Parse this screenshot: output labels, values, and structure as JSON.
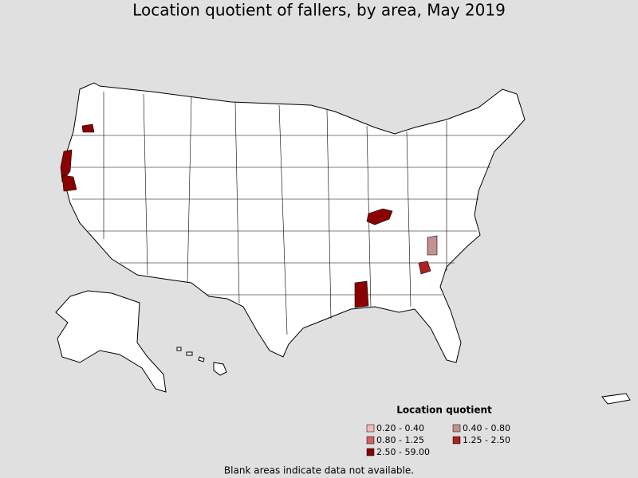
{
  "title": "Location quotient of fallers, by area, May 2019",
  "legend": {
    "title": "Location quotient",
    "items": [
      {
        "label": "0.20 - 0.40",
        "color": "#f4b8b8"
      },
      {
        "label": "0.40 - 0.80",
        "color": "#c49090"
      },
      {
        "label": "0.80 - 1.25",
        "color": "#d66060"
      },
      {
        "label": "1.25 - 2.50",
        "color": "#aa2222"
      },
      {
        "label": "2.50 - 59.00",
        "color": "#8b0000"
      }
    ]
  },
  "note": "Blank areas indicate data not available."
}
